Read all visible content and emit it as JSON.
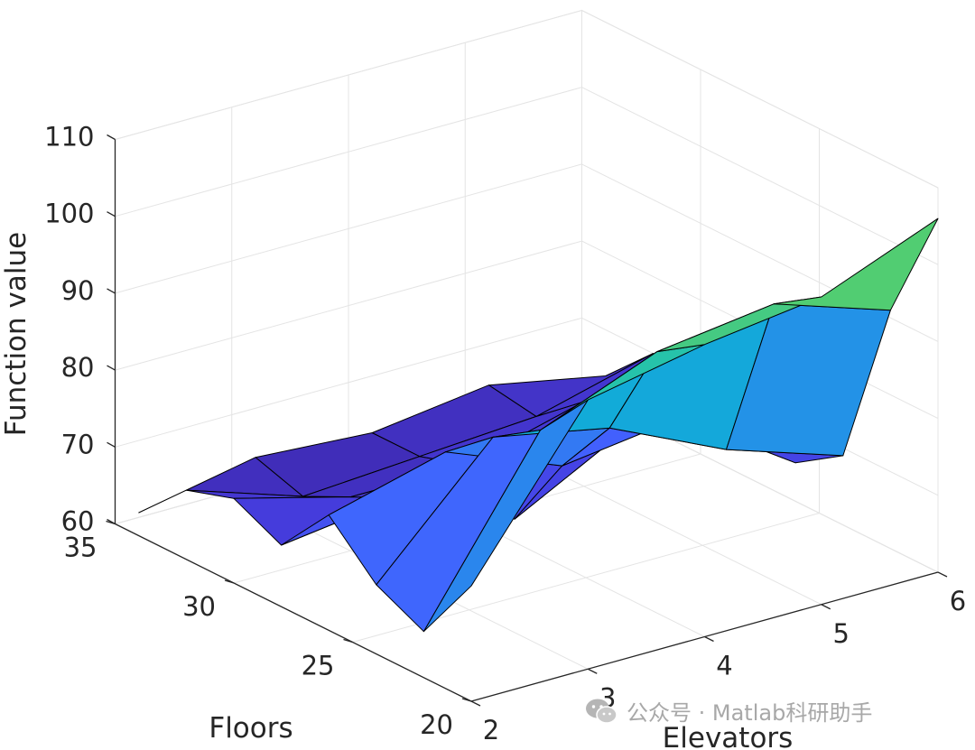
{
  "chart_data": {
    "type": "surface",
    "title": "",
    "xlabel": "Elevators",
    "ylabel": "Floors",
    "zlabel": "Function value",
    "x_ticks": [
      "2",
      "3",
      "4",
      "5",
      "6"
    ],
    "y_ticks": [
      "20",
      "25",
      "30",
      "35"
    ],
    "z_ticks": [
      "60",
      "70",
      "80",
      "90",
      "100",
      "110"
    ],
    "xlim": [
      2,
      6
    ],
    "ylim": [
      20,
      35
    ],
    "zlim": [
      60,
      110
    ],
    "grid": true,
    "colormap": "parula",
    "clim": [
      63,
      107
    ],
    "elevators": [
      2,
      3,
      4,
      5,
      6
    ],
    "floors": [
      20,
      22,
      24,
      26,
      28,
      30,
      32,
      34
    ],
    "function_values": [
      [
        75,
        95,
        98,
        100,
        106
      ],
      [
        66,
        88,
        94,
        96,
        91
      ],
      [
        69,
        84,
        81,
        74,
        69
      ],
      [
        75,
        79,
        73,
        75,
        65
      ],
      [
        68,
        70,
        63,
        71,
        72
      ],
      [
        71,
        67,
        67,
        71,
        63
      ],
      [
        69,
        64,
        65,
        66,
        70
      ],
      [
        63,
        66,
        65,
        67,
        64
      ]
    ]
  },
  "watermark": {
    "text": "公众号 · Matlab科研助手",
    "icon": "wechat-icon"
  }
}
